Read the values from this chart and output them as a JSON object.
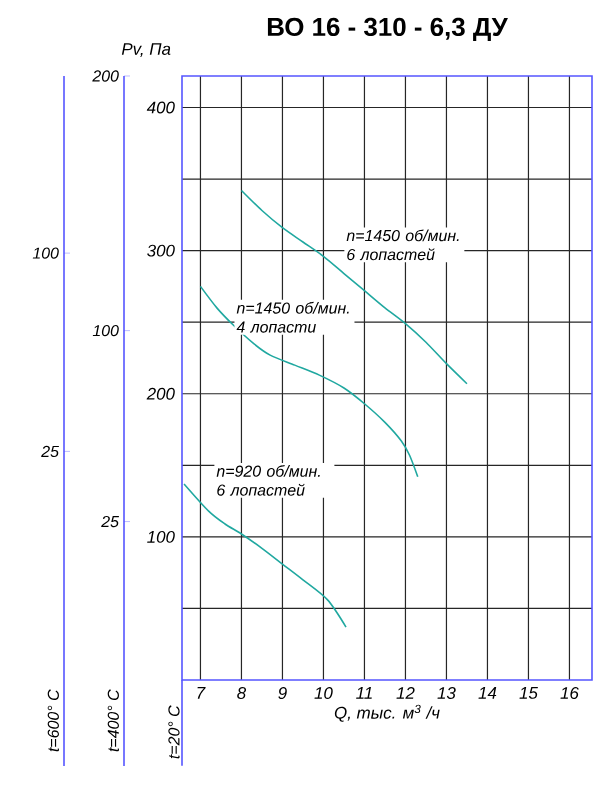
{
  "chart_data": {
    "type": "line",
    "title": "ВО 16 - 310 - 6,3 ДУ",
    "xlabel": "Q, тыс. м$^{3}$ /ч",
    "ylabel": "Pv, Па",
    "y2label": "t=400° C",
    "y3label": "t=600° C",
    "annotations": [
      "t=20° C"
    ],
    "xlim": [
      6.55,
      16.55
    ],
    "xticks": [
      7,
      8,
      9,
      10,
      11,
      12,
      13,
      14,
      15,
      16
    ],
    "ylim": [
      0,
      422
    ],
    "yticks": [
      {
        "value": 50,
        "label": null
      },
      100,
      {
        "value": 150,
        "label": null
      },
      200,
      {
        "value": 250,
        "label": null
      },
      300,
      {
        "value": 350,
        "label": null
      },
      400
    ],
    "y2lim": [
      -71,
      200
    ],
    "y2ticks": [
      25,
      100,
      200
    ],
    "y3lim": [
      -94,
      167
    ],
    "y3ticks": [
      25,
      100
    ],
    "grid": true,
    "series": [
      {
        "name": "n=1450 об/мин. 6 лопастей",
        "color": "#20a8a0",
        "x": [
          8.0,
          8.5,
          9.0,
          9.5,
          10.0,
          10.5,
          11.0,
          11.5,
          12.0,
          12.5,
          13.0,
          13.5
        ],
        "values": [
          342,
          328,
          316,
          306,
          296,
          284,
          272,
          260,
          249,
          236,
          221,
          207
        ]
      },
      {
        "name": "n=1450 об/мин. 4 лопасти",
        "color": "#20a8a0",
        "x": [
          7.0,
          7.4,
          7.8,
          8.3,
          8.7,
          9.3,
          9.9,
          10.5,
          11.0,
          11.5,
          11.9,
          12.1,
          12.3
        ],
        "values": [
          275,
          260,
          248,
          235,
          227,
          220,
          213,
          204,
          193,
          180,
          167,
          157,
          142
        ]
      },
      {
        "name": "n=920 об/мин. 6 лопастей",
        "color": "#20a8a0",
        "x": [
          6.6,
          7.2,
          7.6,
          8.0,
          8.5,
          9.0,
          9.5,
          10.1,
          10.55
        ],
        "values": [
          137,
          118,
          109,
          102,
          92,
          81,
          70,
          56,
          37
        ]
      }
    ]
  }
}
